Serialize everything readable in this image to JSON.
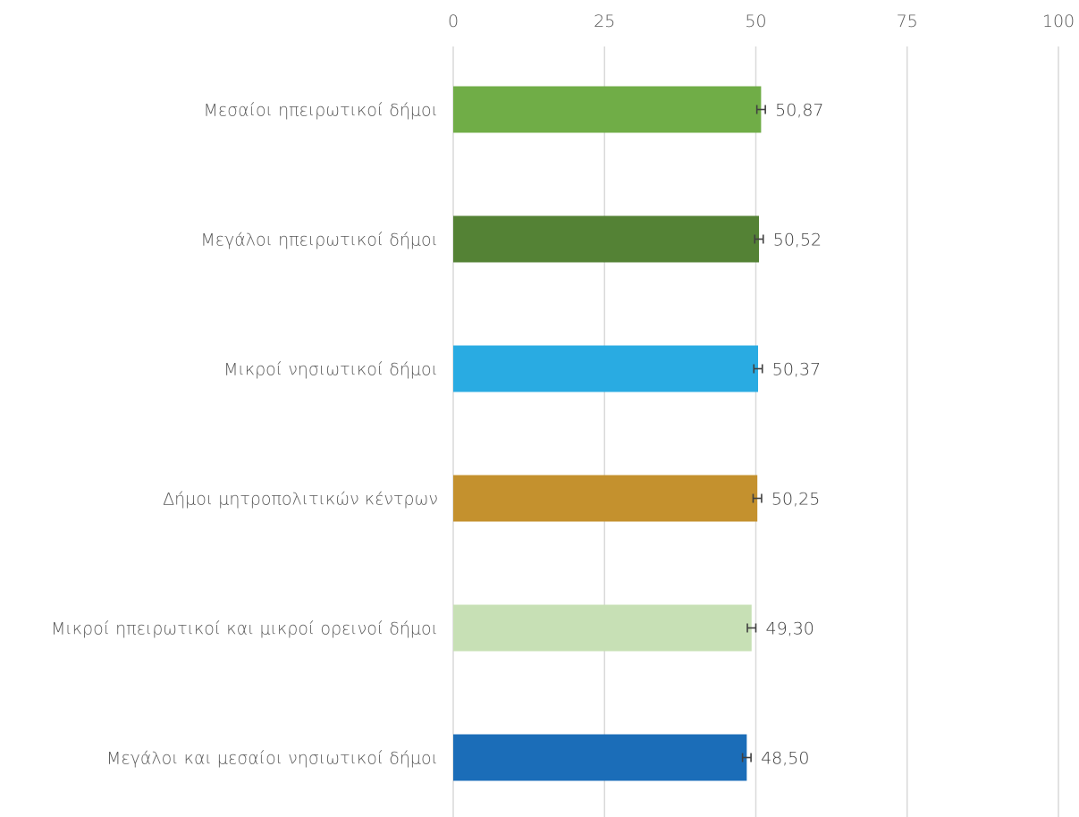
{
  "chart_data": {
    "type": "bar",
    "orientation": "horizontal",
    "title": "",
    "xlabel": "",
    "ylabel": "",
    "xlim": [
      0,
      100
    ],
    "x_ticks": [
      "0",
      "25",
      "50",
      "75",
      "100"
    ],
    "x_tick_values": [
      0,
      25,
      50,
      75,
      100
    ],
    "x_axis_position": "top",
    "grid": "vertical",
    "legend": "none",
    "categories": [
      "Μεσαίοι ηπειρωτικοί δήμοι",
      "Μεγάλοι ηπειρωτικοί δήμοι",
      "Μικροί νησιωτικοί δήμοι",
      "Δήμοι μητροπολιτικών κέντρων",
      "Μικροί ηπειρωτικοί και μικροί ορεινοί δήμοι",
      "Μεγάλοι και μεσαίοι νησιωτικοί δήμοι"
    ],
    "values": [
      50.87,
      50.52,
      50.37,
      50.25,
      49.3,
      48.5
    ],
    "value_labels": [
      "50,87",
      "50,52",
      "50,37",
      "50,25",
      "49,30",
      "48,50"
    ],
    "error_bars": [
      0.7,
      0.7,
      0.7,
      0.7,
      0.7,
      0.7
    ],
    "colors": [
      "#70ad47",
      "#548235",
      "#29abe2",
      "#c4912e",
      "#c7e0b5",
      "#1b6db8"
    ]
  }
}
